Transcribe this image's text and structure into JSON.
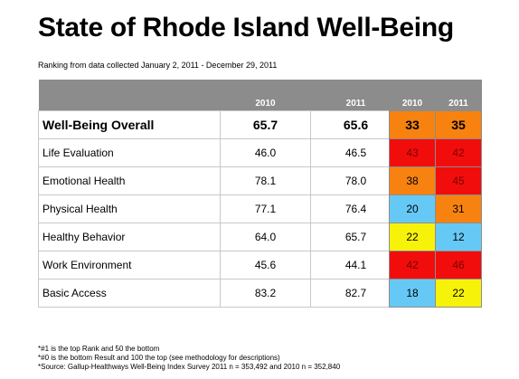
{
  "title": "State of Rhode Island Well-Being",
  "subtitle": "Ranking from data collected January 2, 2011 - December 29, 2011",
  "score_table": {
    "headers": [
      "",
      "2010",
      "2011"
    ],
    "rows": [
      {
        "label": "Well-Being Overall",
        "v2010": "65.7",
        "v2011": "65.6"
      },
      {
        "label": "Life Evaluation",
        "v2010": "46.0",
        "v2011": "46.5"
      },
      {
        "label": "Emotional Health",
        "v2010": "78.1",
        "v2011": "78.0"
      },
      {
        "label": "Physical Health",
        "v2010": "77.1",
        "v2011": "76.4"
      },
      {
        "label": "Healthy Behavior",
        "v2010": "64.0",
        "v2011": "65.7"
      },
      {
        "label": "Work Environment",
        "v2010": "45.6",
        "v2011": "44.1"
      },
      {
        "label": "Basic Access",
        "v2010": "83.2",
        "v2011": "82.7"
      }
    ]
  },
  "rank_table": {
    "headers": [
      "2010",
      "2011"
    ],
    "rows": [
      {
        "r2010": "33",
        "c2010": "#f7820f",
        "r2011": "35",
        "c2011": "#f7820f"
      },
      {
        "r2010": "43",
        "c2010": "#f20d0d",
        "r2011": "42",
        "c2011": "#f20d0d"
      },
      {
        "r2010": "38",
        "c2010": "#f7820f",
        "r2011": "45",
        "c2011": "#f20d0d"
      },
      {
        "r2010": "20",
        "c2010": "#66c9f5",
        "r2011": "31",
        "c2011": "#f7820f"
      },
      {
        "r2010": "22",
        "c2010": "#f7f20a",
        "r2011": "12",
        "c2011": "#66c9f5"
      },
      {
        "r2010": "42",
        "c2010": "#f20d0d",
        "r2011": "46",
        "c2011": "#f20d0d"
      },
      {
        "r2010": "18",
        "c2010": "#66c9f5",
        "r2011": "22",
        "c2011": "#f7f20a"
      }
    ]
  },
  "footnotes": [
    "*#1 is the top Rank and 50 the bottom",
    "*#0 is the bottom Result and 100 the top (see methodology for descriptions)",
    "*Source:  Gallup-Healthways Well-Being Index Survey 2011 n = 353,492 and 2010 n = 352,840"
  ]
}
